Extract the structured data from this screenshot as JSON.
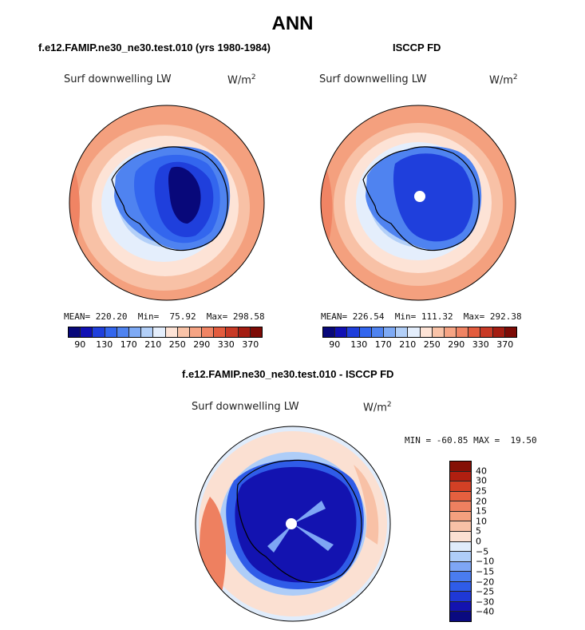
{
  "page": {
    "title": "ANN"
  },
  "palettes": {
    "abs": [
      "#08087a",
      "#1010b4",
      "#1f3fdc",
      "#3366ee",
      "#4f83f0",
      "#7eaaf5",
      "#b2cff8",
      "#e4eefc",
      "#fde3d6",
      "#f9c3a8",
      "#f6a484",
      "#f08464",
      "#e35c3e",
      "#c83a26",
      "#a41d12",
      "#7d0b06"
    ],
    "diff": [
      "#0a0a80",
      "#1313b0",
      "#1f38d6",
      "#2f5ce8",
      "#4a7cf0",
      "#7ea6f5",
      "#aecdf8",
      "#e0ecfb",
      "#fbe0d2",
      "#f8c1a6",
      "#f4a07e",
      "#ee8060",
      "#e5603f",
      "#d24025",
      "#b01f10",
      "#851006"
    ]
  },
  "panels": [
    {
      "title": "f.e12.FAMIP.ne30_ne30.test.010 (yrs 1980-1984)",
      "variable": "Surf downwelling LW",
      "units_base": "W/m",
      "units_exp": "2",
      "stats": "MEAN= 220.20  Min=  75.92  Max= 298.58",
      "cbar_ticks": [
        "90",
        "130",
        "170",
        "210",
        "250",
        "290",
        "330",
        "370"
      ],
      "levels_shown": "abs"
    },
    {
      "title": "ISCCP FD",
      "variable": "Surf downwelling LW",
      "units_base": "W/m",
      "units_exp": "2",
      "stats": "MEAN= 226.54  Min= 111.32  Max= 292.38",
      "cbar_ticks": [
        "90",
        "130",
        "170",
        "210",
        "250",
        "290",
        "330",
        "370"
      ],
      "levels_shown": "abs"
    },
    {
      "title": "f.e12.FAMIP.ne30_ne30.test.010 - ISCCP FD",
      "variable": "Surf downwelling LW",
      "units_base": "W/m",
      "units_exp": "2",
      "stats": "MIN = -60.85 MAX =  19.50",
      "cbar_ticks": [
        "40",
        "30",
        "25",
        "20",
        "15",
        "10",
        "5",
        "0",
        "−5",
        "−10",
        "−15",
        "−20",
        "−25",
        "−30",
        "−40"
      ],
      "levels_shown": "diff"
    }
  ],
  "chart_data": [
    {
      "type": "heatmap",
      "title": "f.e12.FAMIP.ne30_ne30.test.010 (yrs 1980-1984)",
      "variable": "Surf downwelling LW",
      "units": "W/m2",
      "projection": "south-polar-stereographic",
      "mean": 220.2,
      "min": 75.92,
      "max": 298.58,
      "levels": [
        90,
        130,
        170,
        210,
        250,
        290,
        330,
        370
      ],
      "grid": false
    },
    {
      "type": "heatmap",
      "title": "ISCCP FD",
      "variable": "Surf downwelling LW",
      "units": "W/m2",
      "projection": "south-polar-stereographic",
      "mean": 226.54,
      "min": 111.32,
      "max": 292.38,
      "levels": [
        90,
        130,
        170,
        210,
        250,
        290,
        330,
        370
      ],
      "grid": false
    },
    {
      "type": "heatmap",
      "title": "f.e12.FAMIP.ne30_ne30.test.010 - ISCCP FD",
      "variable": "Surf downwelling LW",
      "units": "W/m2",
      "projection": "south-polar-stereographic",
      "min": -60.85,
      "max": 19.5,
      "levels": [
        -40,
        -30,
        -25,
        -20,
        -15,
        -10,
        -5,
        0,
        5,
        10,
        15,
        20,
        25,
        30,
        40
      ],
      "grid": false
    }
  ]
}
